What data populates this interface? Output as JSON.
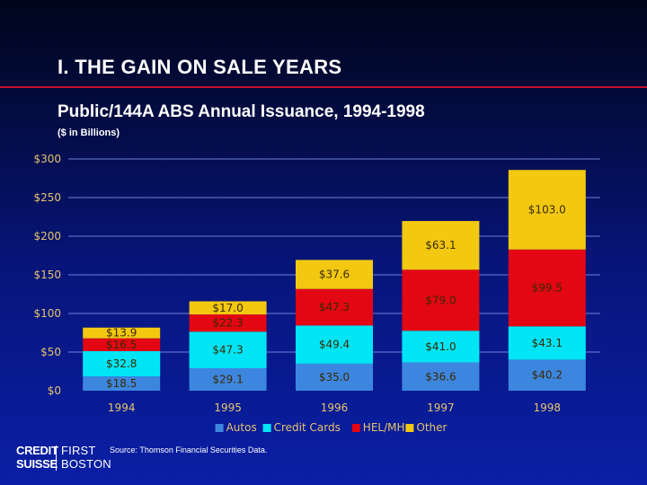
{
  "slide": {
    "title": "I.  THE GAIN ON SALE YEARS",
    "subtitle": "Public/144A ABS Annual Issuance, 1994-1998",
    "units": "($ in Billions)",
    "source": "Source:  Thomson Financial Securities Data.",
    "logo_left_1": "CREDIT",
    "logo_left_2": "SUISSE",
    "logo_right_1": "FIRST",
    "logo_right_2": "BOSTON"
  },
  "colors": {
    "Autos": "#3d86e0",
    "Credit Cards": "#00e5f5",
    "HEL/MH": "#e30613",
    "Other": "#f2c811",
    "axis_text": "#e6c36b",
    "bar_label": "#3a2a00",
    "grid": "#6f7fd8"
  },
  "chart_data": {
    "type": "bar",
    "stacked": true,
    "categories": [
      "1994",
      "1995",
      "1996",
      "1997",
      "1998"
    ],
    "series": [
      {
        "name": "Autos",
        "values": [
          18.5,
          29.1,
          35.0,
          36.6,
          40.2
        ]
      },
      {
        "name": "Credit Cards",
        "values": [
          32.8,
          47.3,
          49.4,
          41.0,
          43.1
        ]
      },
      {
        "name": "HEL/MH",
        "values": [
          16.5,
          22.3,
          47.3,
          79.0,
          99.5
        ]
      },
      {
        "name": "Other",
        "values": [
          13.9,
          17.0,
          37.6,
          63.1,
          103.0
        ]
      }
    ],
    "labels": [
      [
        "$18.5",
        "$29.1",
        "$35.0",
        "$36.6",
        "$40.2"
      ],
      [
        "$32.8",
        "$47.3",
        "$49.4",
        "$41.0",
        "$43.1"
      ],
      [
        "$16.5",
        "$22.3",
        "$47.3",
        "$79.0",
        "$99.5"
      ],
      [
        "$13.9",
        "$17.0",
        "$37.6",
        "$63.1",
        "$103.0"
      ]
    ],
    "y_ticks": [
      0,
      50,
      100,
      150,
      200,
      250,
      300
    ],
    "y_tick_labels": [
      "$0",
      "$50",
      "$100",
      "$150",
      "$200",
      "$250",
      "$300"
    ],
    "ylim": [
      0,
      300
    ],
    "grid": true,
    "legend_position": "bottom-center"
  }
}
